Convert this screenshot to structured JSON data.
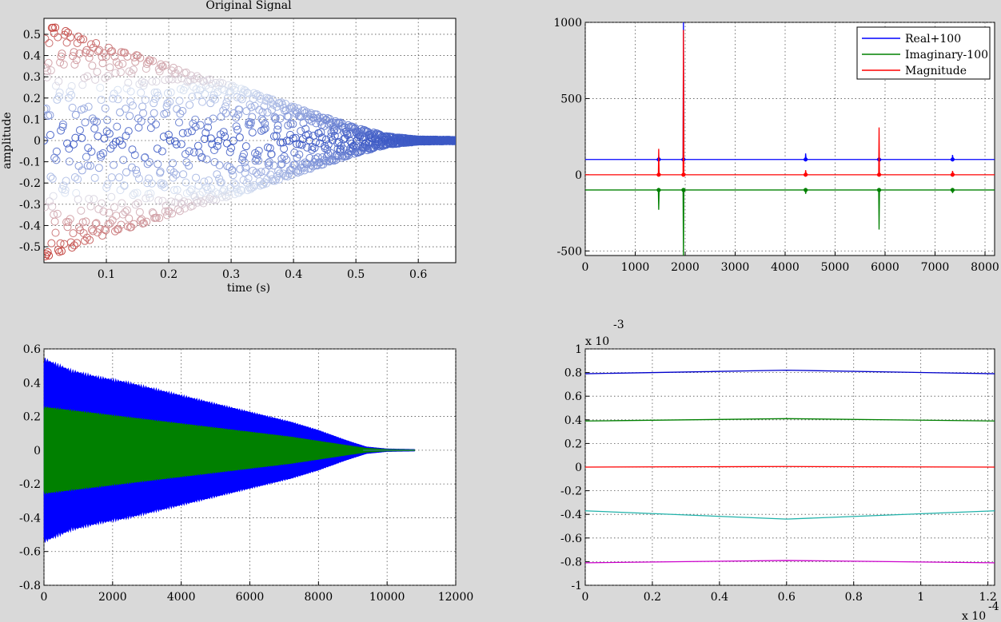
{
  "chart_data": [
    {
      "id": "tl",
      "type": "scatter",
      "title": "Original Signal",
      "xlabel": "time (s)",
      "ylabel": "amplitude",
      "xlim": [
        0,
        0.66
      ],
      "ylim": [
        -0.575,
        0.575
      ],
      "xticks": [
        0.1,
        0.2,
        0.3,
        0.4,
        0.5,
        0.6
      ],
      "xticklabels": [
        "0.1",
        "0.2",
        "0.3",
        "0.4",
        "0.5",
        "0.6"
      ],
      "yticks": [
        -0.5,
        -0.4,
        -0.3,
        -0.2,
        -0.1,
        0,
        0.1,
        0.2,
        0.3,
        0.4,
        0.5
      ],
      "yticklabels": [
        "-0.5",
        "-0.4",
        "-0.3",
        "-0.2",
        "-0.1",
        "0",
        "0.1",
        "0.2",
        "0.3",
        "0.4",
        "0.5"
      ],
      "grid": true,
      "marker": "open circle",
      "colormap": "cool-warm by |amplitude|",
      "envelope": {
        "time": [
          0.0,
          0.05,
          0.1,
          0.15,
          0.2,
          0.25,
          0.3,
          0.35,
          0.4,
          0.45,
          0.5,
          0.55,
          0.6,
          0.66
        ],
        "amplitude": [
          0.55,
          0.5,
          0.44,
          0.4,
          0.35,
          0.3,
          0.26,
          0.21,
          0.16,
          0.11,
          0.06,
          0.02,
          0.005,
          0.003
        ]
      },
      "colors": {
        "low": "#3a57c4",
        "mid": "#dde6f3",
        "high": "#c33b35"
      }
    },
    {
      "id": "tr",
      "type": "line",
      "xlim": [
        0,
        8192
      ],
      "ylim": [
        -530,
        1000
      ],
      "xticks": [
        0,
        1000,
        2000,
        3000,
        4000,
        5000,
        6000,
        7000,
        8000
      ],
      "xticklabels": [
        "0",
        "1000",
        "2000",
        "3000",
        "4000",
        "5000",
        "6000",
        "7000",
        "8000"
      ],
      "yticks": [
        -500,
        0,
        500,
        1000
      ],
      "yticklabels": [
        "-500",
        "0",
        "500",
        "1000"
      ],
      "grid": true,
      "legend": {
        "placement": "top-right"
      },
      "series": [
        {
          "name": "Real+100",
          "color": "#0000ff",
          "baseline": 100,
          "spikes": [
            [
              1470,
              18
            ],
            [
              1965,
              900
            ],
            [
              4410,
              40
            ],
            [
              5880,
              -15
            ],
            [
              7350,
              30
            ]
          ]
        },
        {
          "name": "Imaginary-100",
          "color": "#008000",
          "baseline": -100,
          "spikes": [
            [
              1470,
              -130
            ],
            [
              1965,
              -450
            ],
            [
              4410,
              -25
            ],
            [
              5880,
              -260
            ],
            [
              7350,
              -20
            ]
          ]
        },
        {
          "name": "Magnitude",
          "color": "#ff0000",
          "baseline": 0,
          "spikes": [
            [
              1470,
              170
            ],
            [
              1965,
              950
            ],
            [
              4410,
              30
            ],
            [
              5880,
              310
            ],
            [
              7350,
              25
            ]
          ]
        }
      ]
    },
    {
      "id": "bl",
      "type": "area",
      "xlim": [
        0,
        12000
      ],
      "ylim": [
        -0.8,
        0.6
      ],
      "xticks": [
        0,
        2000,
        4000,
        6000,
        8000,
        10000,
        12000
      ],
      "xticklabels": [
        "0",
        "2000",
        "4000",
        "6000",
        "8000",
        "10000",
        "12000"
      ],
      "yticks": [
        -0.8,
        -0.6,
        -0.4,
        -0.2,
        0,
        0.2,
        0.4,
        0.6
      ],
      "yticklabels": [
        "-0.8",
        "-0.6",
        "-0.4",
        "-0.2",
        "0",
        "0.2",
        "0.4",
        "0.6"
      ],
      "grid": true,
      "series": [
        {
          "color": "#0000ff",
          "x": [
            0,
            800,
            1600,
            2400,
            3200,
            4000,
            4800,
            5600,
            6400,
            7200,
            8000,
            8800,
            9400,
            10000,
            10800
          ],
          "envelope": [
            0.55,
            0.48,
            0.44,
            0.41,
            0.37,
            0.33,
            0.29,
            0.25,
            0.21,
            0.17,
            0.12,
            0.06,
            0.02,
            0.008,
            0.005
          ]
        },
        {
          "color": "#008000",
          "x": [
            0,
            800,
            1600,
            2400,
            3200,
            4000,
            4800,
            5600,
            6400,
            7200,
            8000,
            8800,
            9400,
            10000,
            10800
          ],
          "envelope": [
            0.26,
            0.24,
            0.22,
            0.2,
            0.18,
            0.16,
            0.14,
            0.12,
            0.1,
            0.08,
            0.055,
            0.03,
            0.012,
            0.005,
            0.003
          ]
        }
      ]
    },
    {
      "id": "br",
      "type": "line",
      "xlim": [
        0,
        1.22
      ],
      "ylim": [
        -1,
        1
      ],
      "xexponent": "x 10",
      "xexponent_power": "-4",
      "yexponent": "x 10",
      "yexponent_power": "-3",
      "xticks": [
        0,
        0.2,
        0.4,
        0.6,
        0.8,
        1,
        1.2
      ],
      "xticklabels": [
        "0",
        "0.2",
        "0.4",
        "0.6",
        "0.8",
        "1",
        "1.2"
      ],
      "yticks": [
        -1,
        -0.8,
        -0.6,
        -0.4,
        -0.2,
        0,
        0.2,
        0.4,
        0.6,
        0.8,
        1
      ],
      "yticklabels": [
        "-1",
        "-0.8",
        "-0.6",
        "-0.4",
        "-0.2",
        "0",
        "0.2",
        "0.4",
        "0.6",
        "0.8",
        "1"
      ],
      "grid": true,
      "series": [
        {
          "color": "#0000cc",
          "x": [
            0,
            0.6,
            1.22
          ],
          "y": [
            0.79,
            0.82,
            0.79
          ]
        },
        {
          "color": "#008000",
          "x": [
            0,
            0.6,
            1.22
          ],
          "y": [
            0.39,
            0.41,
            0.39
          ]
        },
        {
          "color": "#ff0000",
          "x": [
            0,
            0.6,
            1.22
          ],
          "y": [
            0.0,
            0.005,
            0.0
          ]
        },
        {
          "color": "#20b2aa",
          "x": [
            0,
            0.6,
            1.22
          ],
          "y": [
            -0.37,
            -0.44,
            -0.37
          ]
        },
        {
          "color": "#cc00cc",
          "x": [
            0,
            0.6,
            1.22
          ],
          "y": [
            -0.81,
            -0.79,
            -0.81
          ]
        }
      ]
    }
  ]
}
